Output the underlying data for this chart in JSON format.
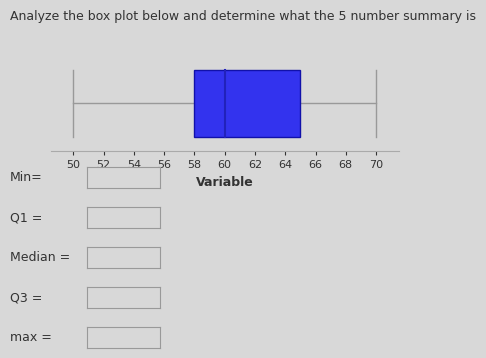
{
  "title": "Analyze the box plot below and determine what the 5 number summary is",
  "xlabel": "Variable",
  "min_val": 50,
  "q1": 58,
  "median": 60,
  "q3": 65,
  "max_val": 70,
  "xlim": [
    48.5,
    71.5
  ],
  "xticks": [
    50,
    52,
    54,
    56,
    58,
    60,
    62,
    64,
    66,
    68,
    70
  ],
  "box_color": "#3333ee",
  "box_edge_color": "#1111aa",
  "whisker_color": "#999999",
  "median_color": "#2222bb",
  "background_color": "#d8d8d8",
  "label_color": "#333333",
  "spine_color": "#aaaaaa",
  "labels": [
    "Min=",
    "Q1 =",
    "Median =",
    "Q3 =",
    "max ="
  ],
  "title_fontsize": 9,
  "tick_fontsize": 8,
  "xlabel_fontsize": 9,
  "label_fontsize": 9
}
